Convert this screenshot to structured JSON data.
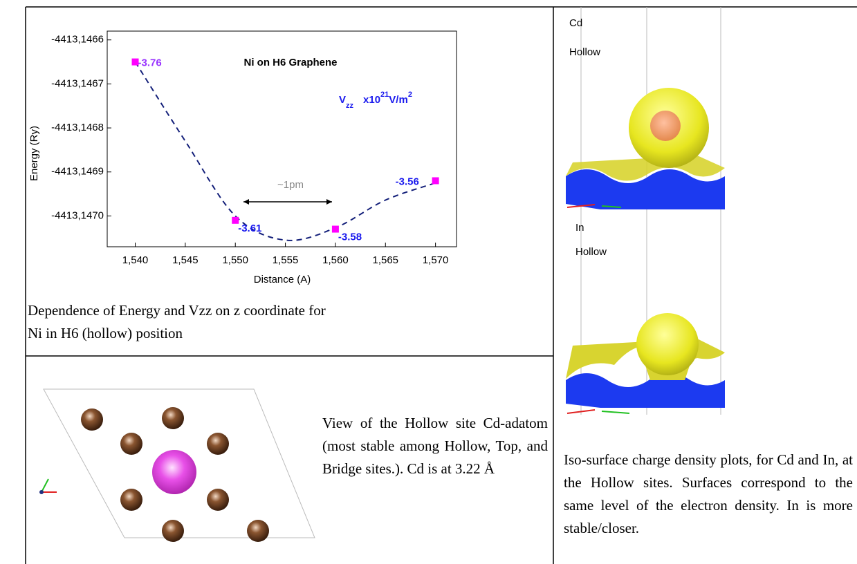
{
  "chart_data": {
    "type": "scatter",
    "title": "Ni on H6 Graphene",
    "vzz_heading": [
      "V",
      "zz",
      "x10",
      "21",
      "V/m",
      "2"
    ],
    "range_note": "~1pm",
    "x_label": "Distance (A)",
    "y_label": "Energy (Ry)",
    "x": [
      1.54,
      1.55,
      1.56,
      1.57
    ],
    "series": [
      {
        "color": "#ff00ff",
        "values": [
          -4413.14665,
          -4413.14701,
          -4413.14703,
          -4413.14692
        ]
      },
      {
        "color": "#14207a",
        "style": "dashed",
        "x": [
          1.54,
          1.545,
          1.55,
          1.555,
          1.56,
          1.565,
          1.57
        ],
        "values": [
          -4413.14665,
          -4413.14683,
          -4413.147,
          -4413.147055,
          -4413.147027,
          -4413.146964,
          -4413.146925
        ]
      }
    ],
    "vzz": [
      -3.76,
      -3.61,
      -3.58,
      -3.56
    ],
    "vzz_colors": [
      "#9933ff",
      "#1a1aee",
      "#1a1aee",
      "#1a1aee"
    ],
    "xlim": [
      1.5372,
      1.5721
    ],
    "ylim": [
      -4413.14707,
      -4413.14658
    ],
    "xticks": [
      {
        "value": 1.54,
        "label": "1,540"
      },
      {
        "value": 1.545,
        "label": "1,545"
      },
      {
        "value": 1.55,
        "label": "1,550"
      },
      {
        "value": 1.555,
        "label": "1,555"
      },
      {
        "value": 1.56,
        "label": "1,560"
      },
      {
        "value": 1.565,
        "label": "1,565"
      },
      {
        "value": 1.57,
        "label": "1,570"
      }
    ],
    "yticks": [
      {
        "value": -4413.1466,
        "label": "-4413,1466"
      },
      {
        "value": -4413.1467,
        "label": "-4413,1467"
      },
      {
        "value": -4413.1468,
        "label": "-4413,1468"
      },
      {
        "value": -4413.1469,
        "label": "-4413,1469"
      },
      {
        "value": -4413.147,
        "label": "-4413,1470"
      }
    ]
  },
  "caption": [
    "Dependence of Energy and Vzz on z coordinate for",
    "Ni in  H6 (hollow) position"
  ],
  "lattice_caption": "View of the Hollow site Cd-adatom (most stable among Hollow, Top, and Bridge sites.). Cd is at 3.22 Å",
  "render_labels": [
    "Cd",
    "Hollow",
    "In",
    "Hollow"
  ],
  "isosurface_caption": "Iso-surface charge density plots, for Cd and In, at the Hollow sites. Surfaces correspond to the same level of the electron density. In is more stable/closer."
}
